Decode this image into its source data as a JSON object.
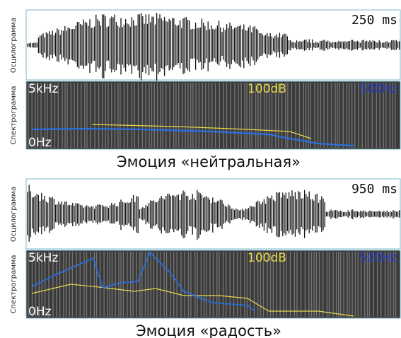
{
  "panels": [
    {
      "oscillogram_label": "Осцилограмма",
      "spectrogram_label": "Спектрограмма",
      "duration": "250 ms",
      "freq_top": "5kHz",
      "intensity": "100dB",
      "pitch_range": "500Hz",
      "freq_bottom": "0Hz",
      "caption": "Эмоция «нейтральная»"
    },
    {
      "oscillogram_label": "Осцилограмма",
      "spectrogram_label": "Спектрограмма",
      "duration": "950 ms",
      "freq_top": "5kHz",
      "intensity": "100dB",
      "pitch_range": "500Hz",
      "freq_bottom": "0Hz",
      "caption": "Эмоция «радость»"
    }
  ]
}
